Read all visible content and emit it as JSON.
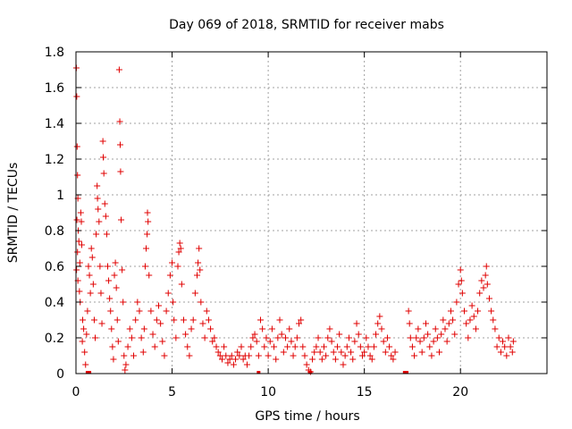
{
  "chart_data": {
    "type": "scatter",
    "title": "Day 069 of 2018, SRMTID for receiver mabs",
    "xlabel": "GPS time / hours",
    "ylabel": "SRMTID / TECUs",
    "xlim": [
      0,
      24.5
    ],
    "ylim": [
      0,
      1.8
    ],
    "xticks": [
      0,
      5,
      10,
      15,
      20
    ],
    "xtick_labels": [
      "0",
      "5",
      "10",
      "15",
      "20"
    ],
    "yticks": [
      0,
      0.2,
      0.4,
      0.6,
      0.8,
      1.0,
      1.2,
      1.4,
      1.6,
      1.8
    ],
    "ytick_labels": [
      "0",
      "0.2",
      "0.4",
      "0.6",
      "0.8",
      "1",
      "1.2",
      "1.4",
      "1.6",
      "1.8"
    ],
    "grid": true,
    "marker": "plus",
    "color": "#e00000",
    "series": [
      {
        "name": "SRMTID",
        "points": [
          [
            0.02,
            1.71
          ],
          [
            0.04,
            1.55
          ],
          [
            0.06,
            1.27
          ],
          [
            0.08,
            1.11
          ],
          [
            0.1,
            0.98
          ],
          [
            0.05,
            0.86
          ],
          [
            0.12,
            0.8
          ],
          [
            0.15,
            0.74
          ],
          [
            0.08,
            0.68
          ],
          [
            0.2,
            0.62
          ],
          [
            0.03,
            0.58
          ],
          [
            0.1,
            0.52
          ],
          [
            0.18,
            0.46
          ],
          [
            0.25,
            0.9
          ],
          [
            0.28,
            0.85
          ],
          [
            0.3,
            0.72
          ],
          [
            0.22,
            0.4
          ],
          [
            0.35,
            0.3
          ],
          [
            0.4,
            0.25
          ],
          [
            0.33,
            0.18
          ],
          [
            0.45,
            0.12
          ],
          [
            0.5,
            0.05
          ],
          [
            0.55,
            0.22
          ],
          [
            0.6,
            0.35
          ],
          [
            0.65,
            0.6
          ],
          [
            0.7,
            0.55
          ],
          [
            0.75,
            0.45
          ],
          [
            0.8,
            0.7
          ],
          [
            0.85,
            0.65
          ],
          [
            0.9,
            0.5
          ],
          [
            0.95,
            0.3
          ],
          [
            1.0,
            0.2
          ],
          [
            1.05,
            0.78
          ],
          [
            1.1,
            1.05
          ],
          [
            1.12,
            0.98
          ],
          [
            1.15,
            0.92
          ],
          [
            1.2,
            0.85
          ],
          [
            1.25,
            0.6
          ],
          [
            1.3,
            0.45
          ],
          [
            1.35,
            0.28
          ],
          [
            1.4,
            1.3
          ],
          [
            1.42,
            1.21
          ],
          [
            1.45,
            1.12
          ],
          [
            1.5,
            0.95
          ],
          [
            1.55,
            0.88
          ],
          [
            1.6,
            0.78
          ],
          [
            1.65,
            0.6
          ],
          [
            1.7,
            0.52
          ],
          [
            1.75,
            0.42
          ],
          [
            1.8,
            0.35
          ],
          [
            1.85,
            0.25
          ],
          [
            1.9,
            0.15
          ],
          [
            1.95,
            0.08
          ],
          [
            2.0,
            0.55
          ],
          [
            2.05,
            0.62
          ],
          [
            2.1,
            0.48
          ],
          [
            2.15,
            0.3
          ],
          [
            2.2,
            0.18
          ],
          [
            2.25,
            1.7
          ],
          [
            2.28,
            1.41
          ],
          [
            2.3,
            1.28
          ],
          [
            2.32,
            1.13
          ],
          [
            2.35,
            0.86
          ],
          [
            2.4,
            0.58
          ],
          [
            2.45,
            0.4
          ],
          [
            2.5,
            0.1
          ],
          [
            2.55,
            0.02
          ],
          [
            2.6,
            0.05
          ],
          [
            2.7,
            0.15
          ],
          [
            2.8,
            0.25
          ],
          [
            2.9,
            0.2
          ],
          [
            3.0,
            0.1
          ],
          [
            3.1,
            0.3
          ],
          [
            3.2,
            0.4
          ],
          [
            3.3,
            0.35
          ],
          [
            3.4,
            0.2
          ],
          [
            3.5,
            0.12
          ],
          [
            3.55,
            0.25
          ],
          [
            3.6,
            0.6
          ],
          [
            3.65,
            0.7
          ],
          [
            3.7,
            0.78
          ],
          [
            3.72,
            0.9
          ],
          [
            3.75,
            0.85
          ],
          [
            3.8,
            0.55
          ],
          [
            3.9,
            0.35
          ],
          [
            4.0,
            0.22
          ],
          [
            4.1,
            0.15
          ],
          [
            4.2,
            0.3
          ],
          [
            4.3,
            0.38
          ],
          [
            4.4,
            0.28
          ],
          [
            4.5,
            0.18
          ],
          [
            4.6,
            0.1
          ],
          [
            4.7,
            0.35
          ],
          [
            4.8,
            0.45
          ],
          [
            4.9,
            0.55
          ],
          [
            5.0,
            0.62
          ],
          [
            5.05,
            0.4
          ],
          [
            5.1,
            0.3
          ],
          [
            5.2,
            0.2
          ],
          [
            5.3,
            0.6
          ],
          [
            5.35,
            0.68
          ],
          [
            5.4,
            0.73
          ],
          [
            5.45,
            0.7
          ],
          [
            5.5,
            0.5
          ],
          [
            5.6,
            0.3
          ],
          [
            5.7,
            0.22
          ],
          [
            5.8,
            0.15
          ],
          [
            5.9,
            0.1
          ],
          [
            6.0,
            0.25
          ],
          [
            6.1,
            0.3
          ],
          [
            6.2,
            0.45
          ],
          [
            6.3,
            0.55
          ],
          [
            6.35,
            0.62
          ],
          [
            6.4,
            0.7
          ],
          [
            6.45,
            0.58
          ],
          [
            6.5,
            0.4
          ],
          [
            6.6,
            0.28
          ],
          [
            6.7,
            0.2
          ],
          [
            6.8,
            0.35
          ],
          [
            6.9,
            0.3
          ],
          [
            7.0,
            0.25
          ],
          [
            7.1,
            0.18
          ],
          [
            7.2,
            0.2
          ],
          [
            7.3,
            0.15
          ],
          [
            7.4,
            0.12
          ],
          [
            7.5,
            0.1
          ],
          [
            7.6,
            0.08
          ],
          [
            7.7,
            0.15
          ],
          [
            7.8,
            0.1
          ],
          [
            7.9,
            0.06
          ],
          [
            8.0,
            0.08
          ],
          [
            8.1,
            0.1
          ],
          [
            8.2,
            0.05
          ],
          [
            8.3,
            0.08
          ],
          [
            8.4,
            0.12
          ],
          [
            8.5,
            0.1
          ],
          [
            8.6,
            0.15
          ],
          [
            8.7,
            0.08
          ],
          [
            8.8,
            0.1
          ],
          [
            8.9,
            0.05
          ],
          [
            9.0,
            0.1
          ],
          [
            9.1,
            0.15
          ],
          [
            9.2,
            0.2
          ],
          [
            9.3,
            0.22
          ],
          [
            9.4,
            0.18
          ],
          [
            9.5,
            0.1
          ],
          [
            9.6,
            0.3
          ],
          [
            9.7,
            0.25
          ],
          [
            9.8,
            0.15
          ],
          [
            9.9,
            0.2
          ],
          [
            10.0,
            0.1
          ],
          [
            10.1,
            0.18
          ],
          [
            10.2,
            0.25
          ],
          [
            10.3,
            0.15
          ],
          [
            10.4,
            0.08
          ],
          [
            10.5,
            0.2
          ],
          [
            10.6,
            0.3
          ],
          [
            10.7,
            0.22
          ],
          [
            10.8,
            0.12
          ],
          [
            10.9,
            0.2
          ],
          [
            11.0,
            0.15
          ],
          [
            11.1,
            0.25
          ],
          [
            11.2,
            0.18
          ],
          [
            11.3,
            0.1
          ],
          [
            11.4,
            0.15
          ],
          [
            11.5,
            0.2
          ],
          [
            11.6,
            0.28
          ],
          [
            11.7,
            0.3
          ],
          [
            11.8,
            0.15
          ],
          [
            11.9,
            0.1
          ],
          [
            12.0,
            0.05
          ],
          [
            12.1,
            0.02
          ],
          [
            12.2,
            0.01
          ],
          [
            12.3,
            0.08
          ],
          [
            12.4,
            0.12
          ],
          [
            12.5,
            0.15
          ],
          [
            12.6,
            0.2
          ],
          [
            12.7,
            0.12
          ],
          [
            12.8,
            0.08
          ],
          [
            12.9,
            0.15
          ],
          [
            13.0,
            0.1
          ],
          [
            13.1,
            0.2
          ],
          [
            13.2,
            0.25
          ],
          [
            13.3,
            0.18
          ],
          [
            13.4,
            0.12
          ],
          [
            13.5,
            0.08
          ],
          [
            13.6,
            0.15
          ],
          [
            13.7,
            0.22
          ],
          [
            13.8,
            0.12
          ],
          [
            13.9,
            0.05
          ],
          [
            14.0,
            0.1
          ],
          [
            14.1,
            0.15
          ],
          [
            14.2,
            0.2
          ],
          [
            14.3,
            0.12
          ],
          [
            14.4,
            0.08
          ],
          [
            14.5,
            0.18
          ],
          [
            14.6,
            0.28
          ],
          [
            14.7,
            0.22
          ],
          [
            14.8,
            0.15
          ],
          [
            14.9,
            0.1
          ],
          [
            15.0,
            0.12
          ],
          [
            15.1,
            0.2
          ],
          [
            15.2,
            0.15
          ],
          [
            15.3,
            0.1
          ],
          [
            15.4,
            0.08
          ],
          [
            15.5,
            0.15
          ],
          [
            15.6,
            0.22
          ],
          [
            15.7,
            0.28
          ],
          [
            15.8,
            0.32
          ],
          [
            15.9,
            0.25
          ],
          [
            16.0,
            0.18
          ],
          [
            16.1,
            0.12
          ],
          [
            16.2,
            0.2
          ],
          [
            16.3,
            0.15
          ],
          [
            16.4,
            0.1
          ],
          [
            16.5,
            0.08
          ],
          [
            16.6,
            0.12
          ],
          [
            17.3,
            0.35
          ],
          [
            17.35,
            0.28
          ],
          [
            17.4,
            0.2
          ],
          [
            17.5,
            0.15
          ],
          [
            17.6,
            0.1
          ],
          [
            17.7,
            0.2
          ],
          [
            17.8,
            0.25
          ],
          [
            17.9,
            0.18
          ],
          [
            18.0,
            0.12
          ],
          [
            18.1,
            0.2
          ],
          [
            18.2,
            0.28
          ],
          [
            18.3,
            0.22
          ],
          [
            18.4,
            0.15
          ],
          [
            18.5,
            0.1
          ],
          [
            18.6,
            0.18
          ],
          [
            18.7,
            0.25
          ],
          [
            18.8,
            0.2
          ],
          [
            18.9,
            0.12
          ],
          [
            19.0,
            0.22
          ],
          [
            19.1,
            0.3
          ],
          [
            19.2,
            0.25
          ],
          [
            19.3,
            0.18
          ],
          [
            19.4,
            0.28
          ],
          [
            19.5,
            0.35
          ],
          [
            19.6,
            0.3
          ],
          [
            19.7,
            0.22
          ],
          [
            19.8,
            0.4
          ],
          [
            19.9,
            0.5
          ],
          [
            20.0,
            0.58
          ],
          [
            20.05,
            0.52
          ],
          [
            20.1,
            0.45
          ],
          [
            20.2,
            0.35
          ],
          [
            20.3,
            0.28
          ],
          [
            20.4,
            0.2
          ],
          [
            20.5,
            0.3
          ],
          [
            20.6,
            0.38
          ],
          [
            20.7,
            0.32
          ],
          [
            20.8,
            0.25
          ],
          [
            20.9,
            0.35
          ],
          [
            21.0,
            0.45
          ],
          [
            21.1,
            0.52
          ],
          [
            21.2,
            0.48
          ],
          [
            21.3,
            0.55
          ],
          [
            21.35,
            0.6
          ],
          [
            21.4,
            0.5
          ],
          [
            21.5,
            0.42
          ],
          [
            21.6,
            0.35
          ],
          [
            21.7,
            0.3
          ],
          [
            21.8,
            0.25
          ],
          [
            21.9,
            0.15
          ],
          [
            22.0,
            0.2
          ],
          [
            22.1,
            0.12
          ],
          [
            22.2,
            0.18
          ],
          [
            22.3,
            0.15
          ],
          [
            22.4,
            0.1
          ],
          [
            22.5,
            0.2
          ],
          [
            22.6,
            0.15
          ],
          [
            22.7,
            0.12
          ],
          [
            22.75,
            0.18
          ]
        ]
      }
    ],
    "floor_markers_x": [
      0.6,
      0.65,
      0.7,
      9.5,
      12.2,
      17.1,
      17.15,
      17.2
    ]
  }
}
